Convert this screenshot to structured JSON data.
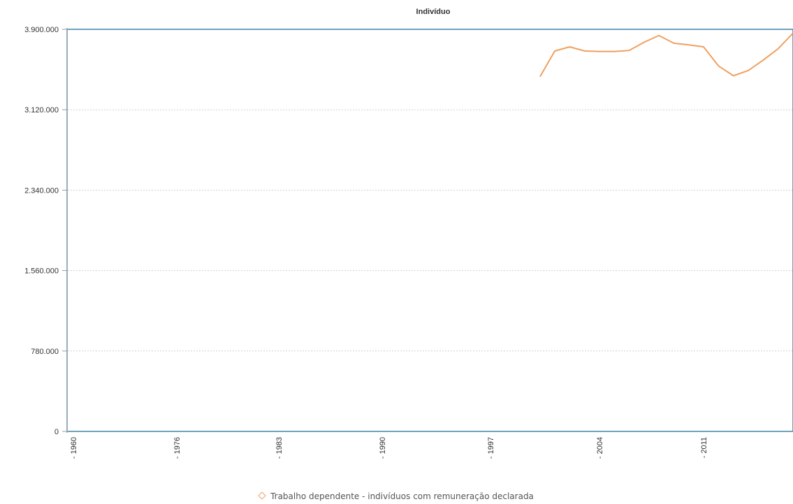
{
  "chart_data": {
    "type": "line",
    "title": "Indivíduo",
    "xlabel": "",
    "ylabel": "",
    "x_tick_labels": [
      "1960",
      "1976",
      "1983",
      "1990",
      "1997",
      "2004",
      "2011"
    ],
    "y_tick_labels": [
      "3.900.000",
      "3.120.000",
      "2.340.000",
      "1.560.000",
      "780.000",
      "0"
    ],
    "ylim": [
      0,
      3900000
    ],
    "grid": "horizontal dotted",
    "legend_position": "bottom",
    "series": [
      {
        "name": "Trabalho dependente - indivíduos com remuneração declarada",
        "color": "#f0a060",
        "x": [
          2000,
          2001,
          2002,
          2003,
          2004,
          2005,
          2006,
          2007,
          2008,
          2009,
          2010,
          2011,
          2012,
          2013,
          2014,
          2015,
          2016,
          2017
        ],
        "values": [
          3440000,
          3690000,
          3730000,
          3690000,
          3685000,
          3685000,
          3695000,
          3775000,
          3840000,
          3765000,
          3750000,
          3730000,
          3545000,
          3450000,
          3500000,
          3600000,
          3710000,
          3860000
        ]
      }
    ]
  },
  "legend": {
    "label": "Trabalho dependente - indivíduos com remuneração declarada"
  }
}
